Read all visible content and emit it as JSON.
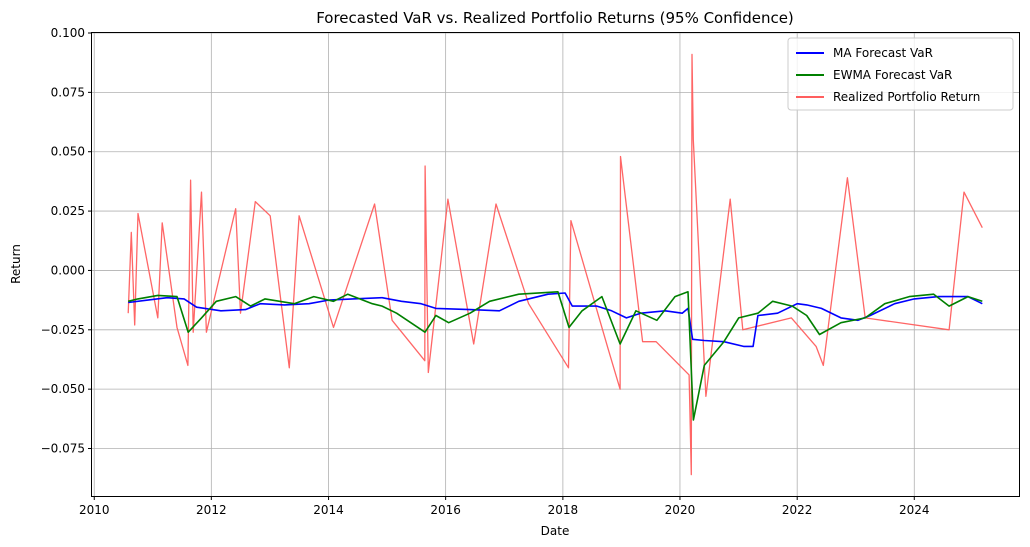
{
  "chart_data": {
    "type": "line",
    "title": "Forecasted VaR vs. Realized Portfolio Returns (95% Confidence)",
    "xlabel": "Date",
    "ylabel": "Return",
    "xlim": [
      "2009-12-18",
      "2025-10-15"
    ],
    "ylim": [
      -0.095,
      0.1
    ],
    "grid": true,
    "legend_position": "top-right",
    "x_ticks": [
      "2010",
      "2012",
      "2014",
      "2016",
      "2018",
      "2020",
      "2022",
      "2024"
    ],
    "y_ticks": [
      "0.100",
      "0.075",
      "0.050",
      "0.025",
      "0.000",
      "−0.025",
      "−0.050",
      "−0.075"
    ],
    "series": [
      {
        "name": "MA Forecast VaR",
        "color": "#0000ff",
        "points": [
          [
            "2010-08-01",
            -0.0135
          ],
          [
            "2010-12-01",
            -0.0125
          ],
          [
            "2011-04-01",
            -0.0115
          ],
          [
            "2011-07-15",
            -0.012
          ],
          [
            "2011-10-01",
            -0.0155
          ],
          [
            "2012-03-01",
            -0.017
          ],
          [
            "2012-08-01",
            -0.0165
          ],
          [
            "2012-11-01",
            -0.014
          ],
          [
            "2013-04-01",
            -0.0145
          ],
          [
            "2013-09-01",
            -0.014
          ],
          [
            "2014-01-01",
            -0.0125
          ],
          [
            "2014-06-01",
            -0.012
          ],
          [
            "2014-12-01",
            -0.0115
          ],
          [
            "2015-04-01",
            -0.013
          ],
          [
            "2015-08-01",
            -0.014
          ],
          [
            "2015-11-01",
            -0.016
          ],
          [
            "2016-06-01",
            -0.0165
          ],
          [
            "2016-12-01",
            -0.017
          ],
          [
            "2017-04-01",
            -0.013
          ],
          [
            "2017-10-01",
            -0.01
          ],
          [
            "2018-01-15",
            -0.0095
          ],
          [
            "2018-03-01",
            -0.015
          ],
          [
            "2018-08-01",
            -0.015
          ],
          [
            "2018-11-01",
            -0.017
          ],
          [
            "2019-02-01",
            -0.02
          ],
          [
            "2019-05-01",
            -0.018
          ],
          [
            "2019-10-01",
            -0.017
          ],
          [
            "2020-01-15",
            -0.018
          ],
          [
            "2020-02-20",
            -0.016
          ],
          [
            "2020-03-20",
            -0.029
          ],
          [
            "2020-06-01",
            -0.0295
          ],
          [
            "2020-10-01",
            -0.03
          ],
          [
            "2021-02-01",
            -0.032
          ],
          [
            "2021-04-01",
            -0.032
          ],
          [
            "2021-05-01",
            -0.019
          ],
          [
            "2021-09-01",
            -0.018
          ],
          [
            "2022-01-01",
            -0.014
          ],
          [
            "2022-03-01",
            -0.0145
          ],
          [
            "2022-06-01",
            -0.016
          ],
          [
            "2022-10-01",
            -0.02
          ],
          [
            "2023-01-15",
            -0.021
          ],
          [
            "2023-04-01",
            -0.019
          ],
          [
            "2023-09-01",
            -0.014
          ],
          [
            "2024-01-01",
            -0.012
          ],
          [
            "2024-06-01",
            -0.011
          ],
          [
            "2024-12-01",
            -0.011
          ],
          [
            "2025-02-28",
            -0.014
          ]
        ]
      },
      {
        "name": "EWMA Forecast VaR",
        "color": "#008000",
        "points": [
          [
            "2010-08-01",
            -0.013
          ],
          [
            "2010-10-01",
            -0.012
          ],
          [
            "2011-02-01",
            -0.0105
          ],
          [
            "2011-06-01",
            -0.011
          ],
          [
            "2011-08-10",
            -0.026
          ],
          [
            "2011-11-01",
            -0.02
          ],
          [
            "2012-02-01",
            -0.013
          ],
          [
            "2012-06-01",
            -0.011
          ],
          [
            "2012-09-01",
            -0.015
          ],
          [
            "2012-12-01",
            -0.012
          ],
          [
            "2013-06-01",
            -0.014
          ],
          [
            "2013-10-01",
            -0.011
          ],
          [
            "2014-02-01",
            -0.013
          ],
          [
            "2014-05-01",
            -0.01
          ],
          [
            "2014-10-01",
            -0.014
          ],
          [
            "2014-12-01",
            -0.015
          ],
          [
            "2015-03-01",
            -0.018
          ],
          [
            "2015-08-25",
            -0.026
          ],
          [
            "2015-11-01",
            -0.019
          ],
          [
            "2016-01-20",
            -0.022
          ],
          [
            "2016-06-01",
            -0.018
          ],
          [
            "2016-10-01",
            -0.013
          ],
          [
            "2017-04-01",
            -0.01
          ],
          [
            "2017-12-01",
            -0.009
          ],
          [
            "2018-02-08",
            -0.024
          ],
          [
            "2018-05-01",
            -0.017
          ],
          [
            "2018-09-01",
            -0.011
          ],
          [
            "2018-12-24",
            -0.031
          ],
          [
            "2019-04-01",
            -0.017
          ],
          [
            "2019-08-10",
            -0.021
          ],
          [
            "2019-12-01",
            -0.011
          ],
          [
            "2020-02-20",
            -0.009
          ],
          [
            "2020-03-25",
            -0.063
          ],
          [
            "2020-06-01",
            -0.04
          ],
          [
            "2020-10-01",
            -0.03
          ],
          [
            "2021-01-01",
            -0.02
          ],
          [
            "2021-05-01",
            -0.018
          ],
          [
            "2021-08-01",
            -0.013
          ],
          [
            "2021-12-01",
            -0.015
          ],
          [
            "2022-03-01",
            -0.019
          ],
          [
            "2022-05-20",
            -0.027
          ],
          [
            "2022-10-01",
            -0.022
          ],
          [
            "2023-03-01",
            -0.02
          ],
          [
            "2023-07-01",
            -0.014
          ],
          [
            "2023-12-01",
            -0.011
          ],
          [
            "2024-05-01",
            -0.01
          ],
          [
            "2024-08-05",
            -0.015
          ],
          [
            "2024-12-01",
            -0.011
          ],
          [
            "2025-02-28",
            -0.013
          ]
        ]
      },
      {
        "name": "Realized Portfolio Return",
        "color": "#ff5e5e",
        "points": [
          [
            "2010-08-01",
            -0.018
          ],
          [
            "2010-08-20",
            0.016
          ],
          [
            "2010-09-10",
            -0.023
          ],
          [
            "2010-10-01",
            0.024
          ],
          [
            "2011-02-01",
            -0.02
          ],
          [
            "2011-03-01",
            0.02
          ],
          [
            "2011-06-01",
            -0.024
          ],
          [
            "2011-08-08",
            -0.04
          ],
          [
            "2011-08-25",
            0.038
          ],
          [
            "2011-09-10",
            -0.026
          ],
          [
            "2011-11-01",
            0.033
          ],
          [
            "2011-12-01",
            -0.026
          ],
          [
            "2012-06-01",
            0.026
          ],
          [
            "2012-07-01",
            -0.018
          ],
          [
            "2012-10-01",
            0.029
          ],
          [
            "2013-01-02",
            0.023
          ],
          [
            "2013-05-01",
            -0.041
          ],
          [
            "2013-07-01",
            0.023
          ],
          [
            "2014-02-01",
            -0.024
          ],
          [
            "2014-10-15",
            0.028
          ],
          [
            "2015-02-01",
            -0.021
          ],
          [
            "2015-08-24",
            -0.038
          ],
          [
            "2015-08-26",
            0.044
          ],
          [
            "2015-09-15",
            -0.043
          ],
          [
            "2016-01-15",
            0.03
          ],
          [
            "2016-06-24",
            -0.031
          ],
          [
            "2016-11-10",
            0.028
          ],
          [
            "2017-06-01",
            -0.014
          ],
          [
            "2018-02-05",
            -0.041
          ],
          [
            "2018-02-20",
            0.021
          ],
          [
            "2018-10-10",
            -0.033
          ],
          [
            "2018-12-24",
            -0.05
          ],
          [
            "2018-12-26",
            0.048
          ],
          [
            "2019-05-13",
            -0.03
          ],
          [
            "2019-08-05",
            -0.03
          ],
          [
            "2020-02-27",
            -0.044
          ],
          [
            "2020-03-12",
            -0.086
          ],
          [
            "2020-03-16",
            0.091
          ],
          [
            "2020-03-24",
            0.055
          ],
          [
            "2020-06-11",
            -0.053
          ],
          [
            "2020-11-09",
            0.03
          ],
          [
            "2021-01-27",
            -0.025
          ],
          [
            "2021-11-26",
            -0.02
          ],
          [
            "2022-04-29",
            -0.032
          ],
          [
            "2022-06-13",
            -0.04
          ],
          [
            "2022-11-10",
            0.039
          ],
          [
            "2023-03-01",
            -0.02
          ],
          [
            "2024-08-05",
            -0.025
          ],
          [
            "2024-11-06",
            0.033
          ],
          [
            "2025-02-28",
            0.018
          ]
        ]
      }
    ]
  }
}
